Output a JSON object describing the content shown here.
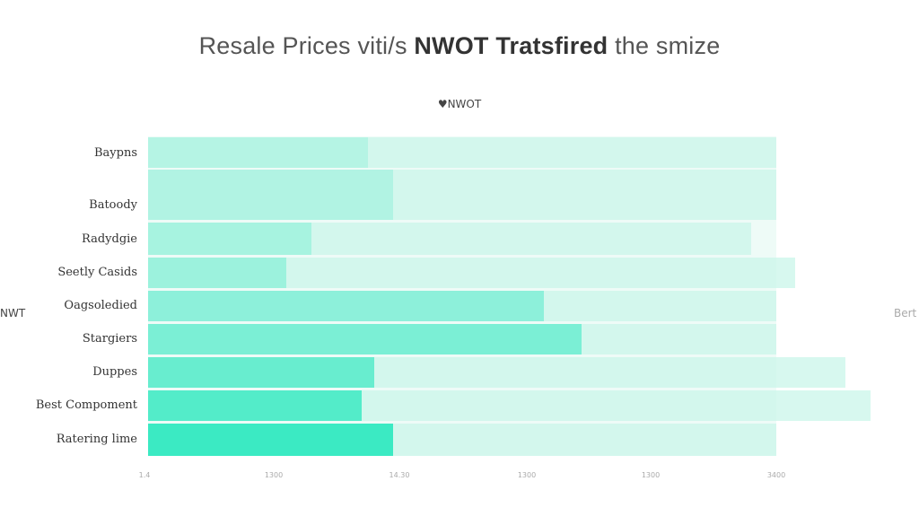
{
  "title_part1": "Resale Prices viti/s ",
  "title_part2": "NWOT Tratsfired",
  "title_part3": " the smize",
  "legend_label": "♥NWOT",
  "ylabel_left": "NWT",
  "ylabel_right": "Bert",
  "chart_data": {
    "type": "bar",
    "orientation": "horizontal",
    "categories": [
      "Baypns",
      "Batoody",
      "Radydgie",
      "Seetly Casids",
      "Oagsoledied",
      "Stargiers",
      "Duppes",
      "Best Compoment",
      "Ratering lime"
    ],
    "x_tick_labels": [
      "1.4",
      "1300",
      "14.30",
      "1300",
      "1300",
      "3400"
    ],
    "series": [
      {
        "name": "NWOT",
        "values": [
          0.35,
          0.39,
          0.26,
          0.22,
          0.63,
          0.69,
          0.36,
          0.34,
          0.39
        ]
      },
      {
        "name": "",
        "values": [
          1.0,
          1.0,
          0.96,
          1.03,
          1.0,
          1.0,
          1.11,
          1.15,
          1.0
        ]
      }
    ],
    "series_colors": [
      "#2fe8bf",
      "#c9f6ea"
    ]
  }
}
